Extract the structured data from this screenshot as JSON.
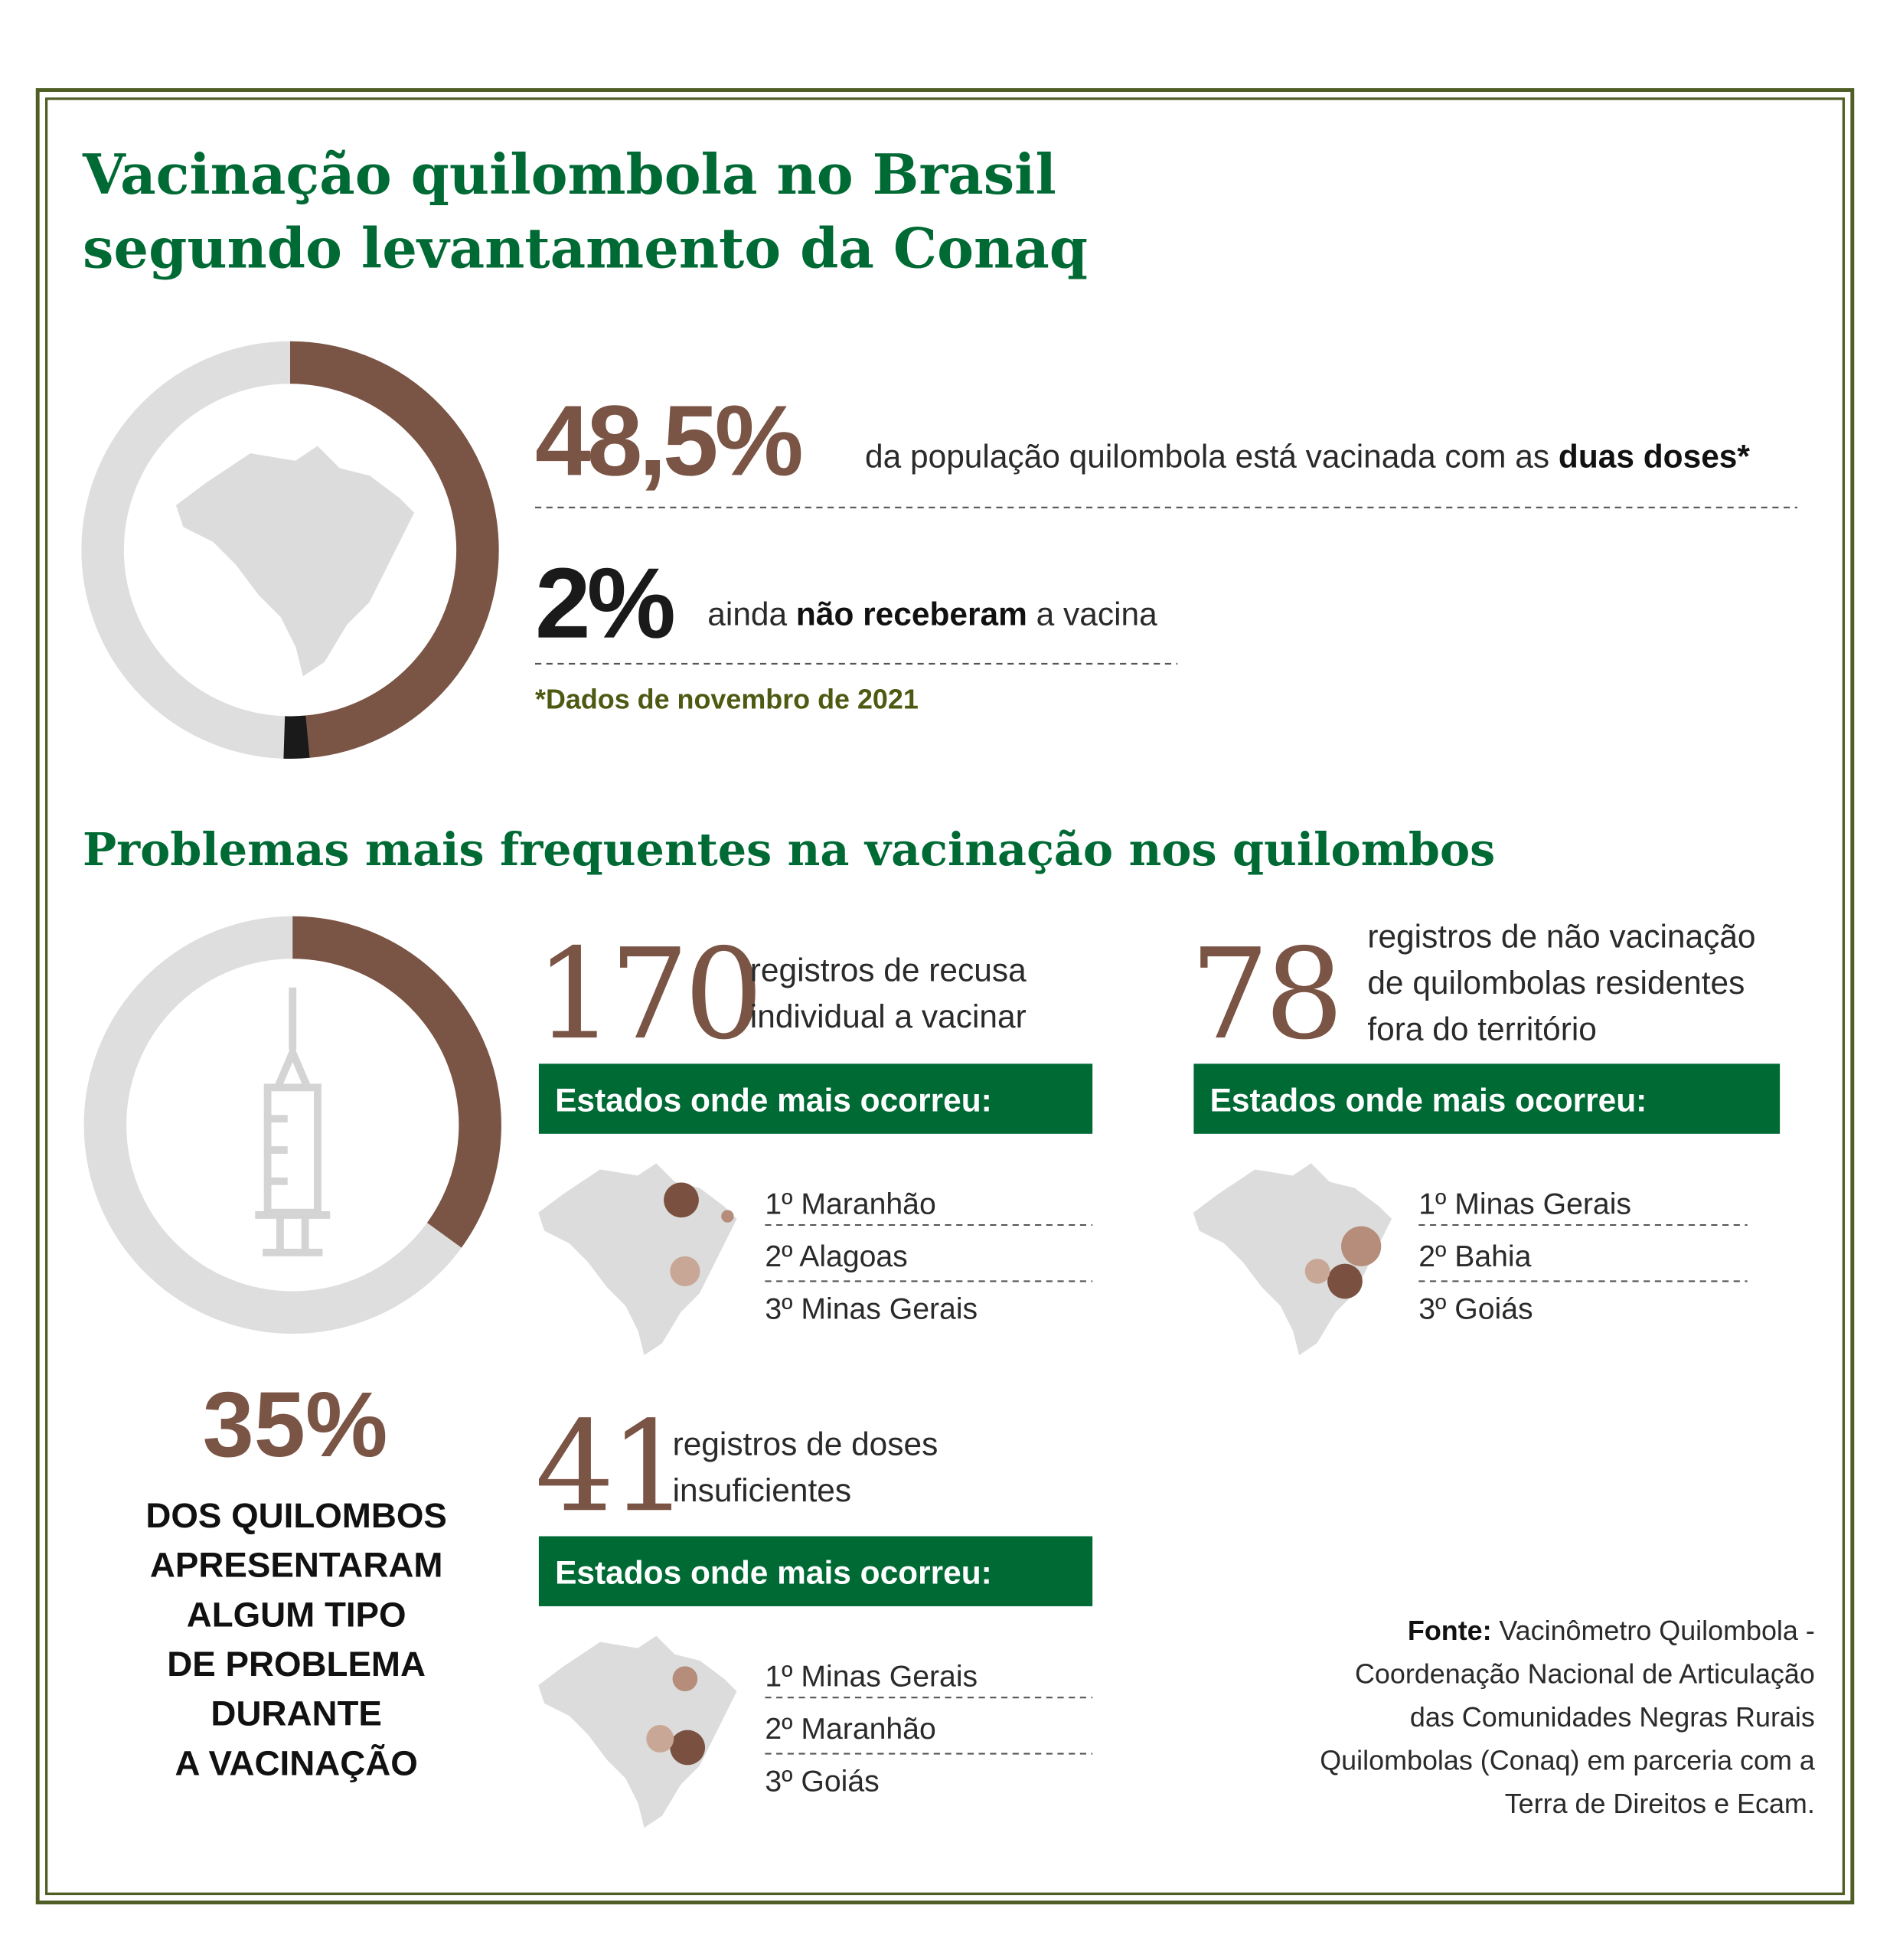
{
  "header": {
    "title": [
      "Vacinação quilombola no Brasil",
      "segundo levantamento da Conaq"
    ]
  },
  "coverage": {
    "stats": [
      {
        "value": 48.5,
        "label": "48,5%",
        "text": [
          "da população quilombola está vacinada com as ",
          "duas doses*"
        ]
      },
      {
        "value": 2,
        "label": "2%",
        "text": [
          "ainda ",
          "não receberam",
          " a vacina"
        ]
      }
    ],
    "note": "*Dados de novembro de 2021"
  },
  "problems": {
    "title": "Problemas mais frequentes na vacinação nos quilombos",
    "share": {
      "value": 35,
      "label": "35%",
      "text": [
        "DOS QUILOMBOS",
        "APRESENTARAM",
        "ALGUM TIPO",
        "DE PROBLEMA",
        "DURANTE",
        "A VACINAÇÃO"
      ]
    },
    "items": [
      {
        "count": 170,
        "text": [
          "registros de recusa",
          "individual a vacinar"
        ],
        "heading": "Estados onde mais ocorreu:",
        "states": [
          "1º Maranhão",
          "2º Alagoas",
          "3º Minas Gerais"
        ]
      },
      {
        "count": 78,
        "text": [
          "registros de não vacinação",
          "de quilombolas residentes",
          "fora do território"
        ],
        "heading": "Estados onde mais ocorreu:",
        "states": [
          "1º Minas Gerais",
          "2º Bahia",
          "3º Goiás"
        ]
      },
      {
        "count": 41,
        "text": [
          "registros de doses",
          "insuficientes"
        ],
        "heading": "Estados onde mais ocorreu:",
        "states": [
          "1º Minas Gerais",
          "2º Maranhão",
          "3º Goiás"
        ]
      }
    ]
  },
  "source": {
    "label": "Fonte:",
    "lines": [
      "Vacinômetro Quilombola -",
      "Coordenação Nacional de Articulação",
      "das Comunidades Negras Rurais",
      "Quilombolas (Conaq) em parceria com a",
      "Terra de Direitos e Ecam."
    ]
  }
}
